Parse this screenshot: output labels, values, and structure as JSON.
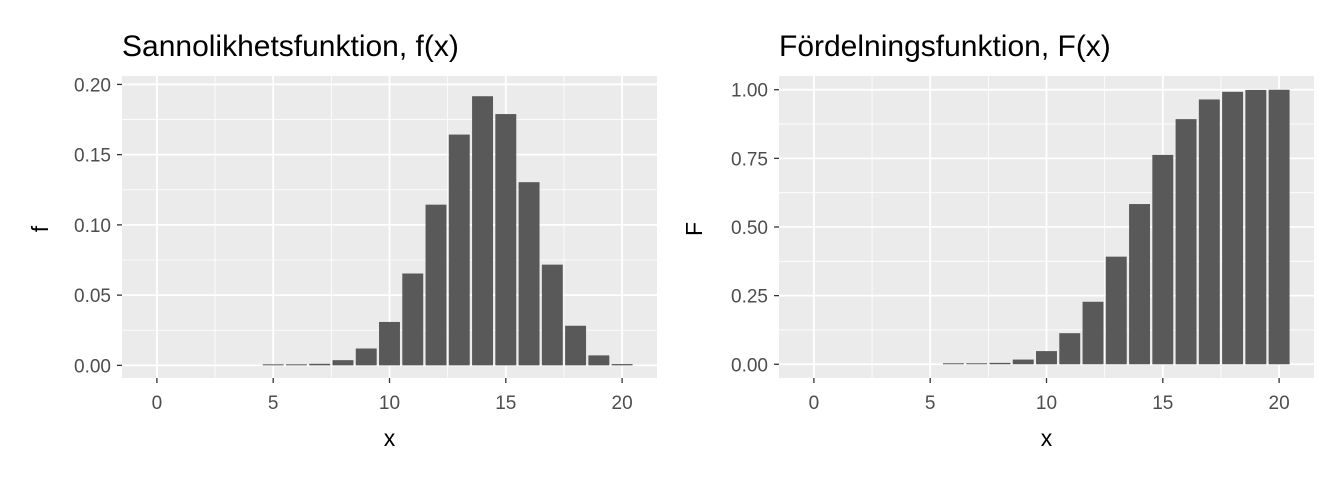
{
  "chart_data": [
    {
      "type": "bar",
      "title": "Sannolikhetsfunktion, f(x)",
      "xlabel": "x",
      "ylabel": "f",
      "xlim": [
        -1.5,
        21.5
      ],
      "ylim": [
        -0.009,
        0.206
      ],
      "xticks": [
        0,
        5,
        10,
        15,
        20
      ],
      "xtick_labels": [
        "0",
        "5",
        "10",
        "15",
        "20"
      ],
      "yticks": [
        0,
        0.05,
        0.1,
        0.15,
        0.2
      ],
      "ytick_labels": [
        "0.00",
        "0.05",
        "0.10",
        "0.15",
        "0.20"
      ],
      "grid": true,
      "bar_color": "#595959",
      "panel_color": "#ebebeb",
      "x": [
        0,
        1,
        2,
        3,
        4,
        5,
        6,
        7,
        8,
        9,
        10,
        11,
        12,
        13,
        14,
        15,
        16,
        17,
        18,
        19,
        20
      ],
      "values": [
        0,
        0,
        0,
        0,
        0,
        0.0001,
        0.0003,
        0.0011,
        0.0037,
        0.012,
        0.0309,
        0.0654,
        0.1144,
        0.1643,
        0.1916,
        0.1789,
        0.1304,
        0.0717,
        0.0282,
        0.0071,
        0.0009
      ]
    },
    {
      "type": "bar",
      "title": "Fördelningsfunktion, F(x)",
      "xlabel": "x",
      "ylabel": "F",
      "xlim": [
        -1.5,
        21.5
      ],
      "ylim": [
        -0.05,
        1.05
      ],
      "xticks": [
        0,
        5,
        10,
        15,
        20
      ],
      "xtick_labels": [
        "0",
        "5",
        "10",
        "15",
        "20"
      ],
      "yticks": [
        0,
        0.25,
        0.5,
        0.75,
        1
      ],
      "ytick_labels": [
        "0.00",
        "0.25",
        "0.50",
        "0.75",
        "1.00"
      ],
      "grid": true,
      "bar_color": "#595959",
      "panel_color": "#ebebeb",
      "x": [
        0,
        1,
        2,
        3,
        4,
        5,
        6,
        7,
        8,
        9,
        10,
        11,
        12,
        13,
        14,
        15,
        16,
        17,
        18,
        19,
        20
      ],
      "values": [
        0,
        0,
        0,
        0,
        0,
        0,
        0.0004,
        0.0015,
        0.0051,
        0.0171,
        0.048,
        0.1133,
        0.2277,
        0.392,
        0.5836,
        0.7625,
        0.8929,
        0.9645,
        0.9924,
        0.9992,
        1.0
      ]
    }
  ]
}
